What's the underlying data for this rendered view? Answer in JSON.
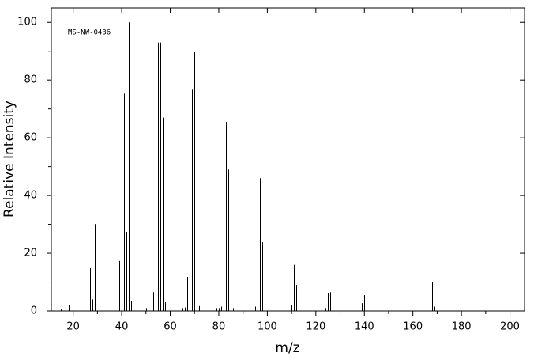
{
  "chart_data": {
    "type": "bar",
    "annotation": "MS-NW-0436",
    "x_label": "m/z",
    "y_label": "Relative Intensity",
    "x": [
      15,
      18,
      26,
      27,
      28,
      29,
      31,
      39,
      40,
      41,
      42,
      43,
      44,
      50,
      51,
      53,
      54,
      55,
      56,
      57,
      58,
      65,
      66,
      67,
      68,
      69,
      70,
      71,
      72,
      79,
      80,
      81,
      82,
      83,
      84,
      85,
      86,
      95,
      96,
      97,
      98,
      99,
      110,
      111,
      112,
      113,
      124,
      125,
      126,
      139,
      140,
      168,
      169
    ],
    "values": [
      0.5,
      2,
      1,
      14.8,
      4,
      30.1,
      1,
      17.3,
      3,
      75.3,
      27.4,
      100,
      3.5,
      1,
      1,
      6.5,
      12.5,
      93,
      93,
      67,
      3,
      1,
      1.2,
      11.8,
      13,
      76.7,
      89.6,
      29,
      1.7,
      1,
      1,
      1.5,
      14.5,
      65.5,
      49,
      14.5,
      1,
      1.5,
      6,
      46,
      23.8,
      2.2,
      2.2,
      16,
      9,
      1,
      1,
      6.3,
      6.5,
      2.7,
      5.5,
      10.1,
      1.5
    ],
    "color": "#000000",
    "xlim": [
      11,
      206
    ],
    "ylim": [
      0,
      105
    ],
    "xticks": [
      20,
      40,
      60,
      80,
      100,
      120,
      140,
      160,
      180,
      200
    ],
    "xminorticks": [
      30,
      50,
      70,
      90,
      110,
      130,
      150,
      170,
      190
    ],
    "yticks": [
      0,
      20,
      40,
      60,
      80,
      100
    ],
    "yminorticks": [
      10,
      30,
      50,
      70,
      90
    ],
    "grid": false
  }
}
